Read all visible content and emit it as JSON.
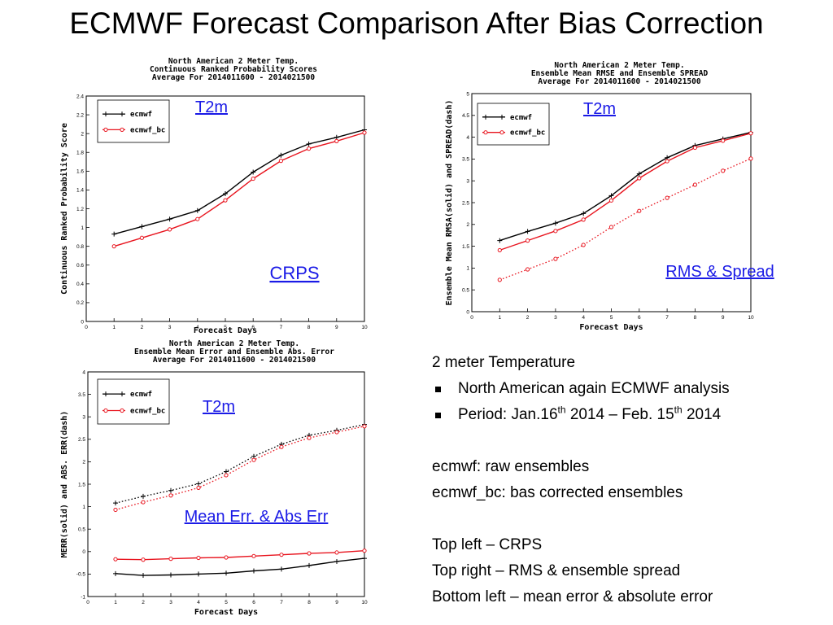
{
  "slide_title": "ECMWF Forecast Comparison After Bias Correction",
  "colors": {
    "ecmwf": "#000000",
    "ecmwf_bc": "#e8141e",
    "annotation": "#1a1ae6"
  },
  "chart_data": [
    {
      "type": "line",
      "title": "North American 2 Meter Temp.",
      "subtitle_lines": [
        "Continuous Ranked Probability Scores",
        "Average For 2014011600 - 2014021500"
      ],
      "xlabel": "Forecast Days",
      "ylabel": "Continuous Ranked Probability Score",
      "xlim": [
        0,
        10
      ],
      "ylim": [
        0,
        2.4
      ],
      "xticks": [
        0,
        1,
        2,
        3,
        4,
        5,
        6,
        7,
        8,
        9,
        10
      ],
      "yticks": [
        0,
        0.2,
        0.4,
        0.6,
        0.8,
        1,
        1.2,
        1.4,
        1.6,
        1.8,
        2,
        2.2,
        2.4
      ],
      "x": [
        1,
        2,
        3,
        4,
        5,
        6,
        7,
        8,
        9,
        10
      ],
      "series": [
        {
          "name": "ecmwf",
          "style": "solid",
          "marker": "plus",
          "values": [
            0.93,
            1.01,
            1.09,
            1.18,
            1.36,
            1.59,
            1.77,
            1.89,
            1.96,
            2.04
          ]
        },
        {
          "name": "ecmwf_bc",
          "style": "solid",
          "marker": "circle",
          "values": [
            0.8,
            0.89,
            0.98,
            1.09,
            1.29,
            1.52,
            1.71,
            1.84,
            1.92,
            2.01
          ]
        }
      ],
      "annotations": [
        "T2m",
        "CRPS"
      ],
      "legend_position": "top-left"
    },
    {
      "type": "line",
      "title": "North American 2 Meter Temp.",
      "subtitle_lines": [
        "Ensemble Mean RMSE and Ensemble SPREAD",
        "Average For 2014011600 - 2014021500"
      ],
      "xlabel": "Forecast Days",
      "ylabel": "Ensemble Mean RMSA(solid) and SPREAD(dash)",
      "xlim": [
        0,
        10
      ],
      "ylim": [
        0,
        5
      ],
      "xticks": [
        0,
        1,
        2,
        3,
        4,
        5,
        6,
        7,
        8,
        9,
        10
      ],
      "yticks": [
        0,
        0.5,
        1,
        1.5,
        2,
        2.5,
        3,
        3.5,
        4,
        4.5,
        5
      ],
      "x": [
        1,
        2,
        3,
        4,
        5,
        6,
        7,
        8,
        9,
        10
      ],
      "series": [
        {
          "name": "ecmwf",
          "style": "solid",
          "marker": "plus",
          "values": [
            1.63,
            1.84,
            2.03,
            2.25,
            2.66,
            3.16,
            3.53,
            3.81,
            3.96,
            4.11
          ]
        },
        {
          "name": "ecmwf_bc",
          "style": "solid",
          "marker": "circle",
          "values": [
            1.41,
            1.63,
            1.85,
            2.11,
            2.55,
            3.06,
            3.45,
            3.76,
            3.92,
            4.09
          ]
        },
        {
          "name": "ecmwf_bc",
          "style": "dash",
          "marker": "circle",
          "values": [
            0.73,
            0.97,
            1.21,
            1.53,
            1.94,
            2.31,
            2.61,
            2.91,
            3.23,
            3.51
          ]
        }
      ],
      "annotations": [
        "T2m",
        "RMS & Spread"
      ],
      "legend_position": "top-left"
    },
    {
      "type": "line",
      "title": "North American 2 Meter Temp.",
      "subtitle_lines": [
        "Ensemble Mean Error and Ensemble Abs. Error",
        "Average For 2014011600 - 2014021500"
      ],
      "xlabel": "Forecast Days",
      "ylabel": "MERR(solid) and ABS. ERR(dash)",
      "xlim": [
        0,
        10
      ],
      "ylim": [
        -1,
        4
      ],
      "xticks": [
        0,
        1,
        2,
        3,
        4,
        5,
        6,
        7,
        8,
        9,
        10
      ],
      "yticks": [
        -1,
        -0.5,
        0,
        0.5,
        1,
        1.5,
        2,
        2.5,
        3,
        3.5,
        4
      ],
      "x": [
        1,
        2,
        3,
        4,
        5,
        6,
        7,
        8,
        9,
        10
      ],
      "series": [
        {
          "name": "ecmwf",
          "style": "solid",
          "marker": "plus",
          "values": [
            -0.49,
            -0.53,
            -0.52,
            -0.5,
            -0.48,
            -0.43,
            -0.39,
            -0.31,
            -0.22,
            -0.15
          ]
        },
        {
          "name": "ecmwf_bc",
          "style": "solid",
          "marker": "circle",
          "values": [
            -0.17,
            -0.18,
            -0.16,
            -0.14,
            -0.13,
            -0.1,
            -0.07,
            -0.04,
            -0.02,
            0.02
          ]
        },
        {
          "name": "ecmwf",
          "style": "dash",
          "marker": "plus",
          "values": [
            1.08,
            1.23,
            1.36,
            1.51,
            1.78,
            2.12,
            2.39,
            2.59,
            2.7,
            2.83
          ]
        },
        {
          "name": "ecmwf_bc",
          "style": "dash",
          "marker": "circle",
          "values": [
            0.93,
            1.1,
            1.25,
            1.42,
            1.7,
            2.04,
            2.33,
            2.53,
            2.66,
            2.79
          ]
        }
      ],
      "annotations": [
        "T2m",
        "Mean Err. & Abs Err"
      ],
      "legend_position": "top-left"
    }
  ],
  "notes": {
    "heading": "2 meter Temperature",
    "bullets": [
      {
        "text": "North American again ECMWF analysis"
      },
      {
        "before_sup1": "Period: Jan.16",
        "sup1": "th",
        "mid": " 2014 – Feb. 15",
        "sup2": "th",
        "after": " 2014"
      }
    ],
    "def_1": "ecmwf: raw ensembles",
    "def_2": "ecmwf_bc: bas corrected ensembles",
    "key_1": "Top left – CRPS",
    "key_2": "Top right – RMS & ensemble spread",
    "key_3": "Bottom left – mean error & absolute error"
  }
}
